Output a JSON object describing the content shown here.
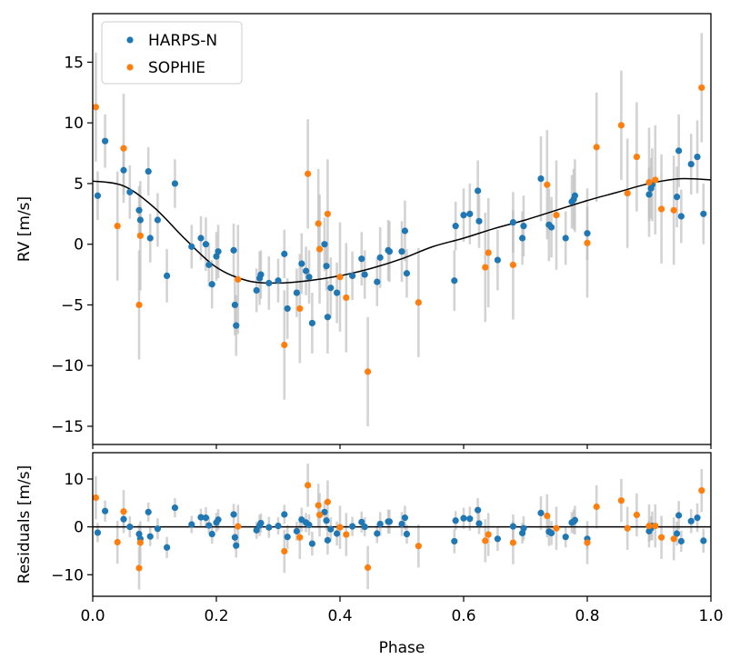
{
  "chart_data": [
    {
      "type": "scatter",
      "panel": "top",
      "xlabel": "",
      "ylabel": "RV [m/s]",
      "xlim": [
        0,
        1
      ],
      "ylim": [
        -16.5,
        19
      ],
      "yticks": [
        15,
        10,
        5,
        0,
        -5,
        -10,
        -15
      ],
      "ytick_labels": [
        "15",
        "10",
        "5",
        "0",
        "−5",
        "−10",
        "−15"
      ],
      "grid": false,
      "legend": {
        "placement": "top-left",
        "entries": [
          "HARPS-N",
          "SOPHIE"
        ]
      },
      "colors": {
        "HARPS-N": "#1f77b4",
        "SOPHIE": "#ff7f0e",
        "errorbar": "#bbbbbb",
        "model": "#000000"
      },
      "model": {
        "x": [
          0,
          0.05,
          0.1,
          0.15,
          0.2,
          0.25,
          0.3,
          0.35,
          0.4,
          0.45,
          0.5,
          0.55,
          0.6,
          0.65,
          0.7,
          0.75,
          0.8,
          0.85,
          0.9,
          0.95,
          1.0
        ],
        "y": [
          5.2,
          4.8,
          3.0,
          0.4,
          -1.9,
          -3.0,
          -3.2,
          -3.0,
          -2.6,
          -2.0,
          -1.2,
          -0.2,
          0.5,
          1.3,
          2.0,
          2.8,
          3.6,
          4.3,
          5.0,
          5.4,
          5.3
        ]
      },
      "series": [
        {
          "name": "HARPS-N",
          "x": [
            0.008,
            0.02,
            0.05,
            0.06,
            0.075,
            0.077,
            0.09,
            0.093,
            0.105,
            0.12,
            0.133,
            0.16,
            0.175,
            0.183,
            0.188,
            0.193,
            0.2,
            0.203,
            0.228,
            0.23,
            0.232,
            0.265,
            0.27,
            0.272,
            0.285,
            0.3,
            0.31,
            0.315,
            0.33,
            0.338,
            0.345,
            0.35,
            0.355,
            0.375,
            0.378,
            0.38,
            0.385,
            0.395,
            0.42,
            0.435,
            0.44,
            0.46,
            0.465,
            0.478,
            0.48,
            0.5,
            0.505,
            0.508,
            0.585,
            0.587,
            0.6,
            0.61,
            0.623,
            0.625,
            0.655,
            0.68,
            0.695,
            0.697,
            0.725,
            0.738,
            0.742,
            0.765,
            0.775,
            0.778,
            0.78,
            0.8,
            0.9,
            0.903,
            0.905,
            0.945,
            0.948,
            0.952,
            0.968,
            0.978,
            0.988
          ],
          "y": [
            4.0,
            8.5,
            6.1,
            4.3,
            2.8,
            2.0,
            6.0,
            0.5,
            2.0,
            -2.6,
            5.0,
            -0.2,
            0.5,
            0.0,
            -1.7,
            -3.3,
            -1.0,
            -0.6,
            -0.5,
            -5.0,
            -6.7,
            -3.8,
            -2.8,
            -2.5,
            -3.2,
            -3.0,
            -0.8,
            -5.3,
            -4.0,
            -1.6,
            -2.2,
            -2.7,
            -6.5,
            0.0,
            -1.8,
            -6.0,
            -3.6,
            -4.0,
            -2.6,
            -1.2,
            -2.5,
            -3.1,
            -1.1,
            -0.5,
            -0.6,
            -0.6,
            1.1,
            -2.4,
            -3.0,
            1.5,
            2.4,
            2.5,
            4.4,
            1.9,
            -1.3,
            1.8,
            0.5,
            1.5,
            5.4,
            1.6,
            1.4,
            0.5,
            3.5,
            3.7,
            4.0,
            0.9,
            4.1,
            4.6,
            4.9,
            3.9,
            7.7,
            2.3,
            6.6,
            7.2,
            2.5
          ],
          "errors": [
            2.0,
            2.2,
            2.0,
            2.2,
            2.0,
            1.2,
            2.0,
            2.0,
            2.2,
            2.2,
            2.0,
            1.8,
            1.8,
            2.2,
            1.8,
            2.0,
            2.0,
            2.2,
            2.2,
            2.5,
            2.5,
            1.8,
            2.2,
            2.0,
            2.2,
            1.8,
            2.0,
            2.5,
            2.0,
            2.5,
            2.0,
            2.2,
            2.5,
            2.2,
            2.0,
            3.0,
            2.5,
            2.5,
            2.0,
            2.2,
            2.0,
            2.0,
            2.5,
            2.5,
            2.5,
            2.5,
            2.5,
            2.0,
            2.5,
            2.0,
            2.2,
            2.5,
            2.5,
            2.2,
            2.5,
            2.5,
            2.2,
            2.5,
            3.5,
            3.0,
            2.5,
            2.2,
            2.2,
            2.5,
            3.0,
            2.2,
            2.2,
            2.5,
            3.0,
            2.5,
            3.0,
            2.2,
            2.5,
            3.0,
            2.5
          ]
        },
        {
          "name": "SOPHIE",
          "x": [
            0.005,
            0.04,
            0.05,
            0.075,
            0.077,
            0.235,
            0.31,
            0.335,
            0.348,
            0.365,
            0.367,
            0.38,
            0.4,
            0.41,
            0.445,
            0.527,
            0.635,
            0.64,
            0.68,
            0.735,
            0.75,
            0.8,
            0.815,
            0.855,
            0.865,
            0.88,
            0.9,
            0.91,
            0.92,
            0.94,
            0.985
          ],
          "y": [
            11.3,
            1.5,
            7.9,
            -5.0,
            0.7,
            -2.9,
            -8.3,
            -5.3,
            5.8,
            1.7,
            -0.4,
            2.5,
            -2.7,
            -4.4,
            -10.5,
            -4.8,
            -1.9,
            -0.7,
            -1.7,
            4.9,
            2.4,
            0.1,
            8.0,
            9.8,
            4.2,
            7.2,
            5.1,
            5.3,
            2.9,
            2.8,
            12.9
          ]
        }
      ]
    },
    {
      "type": "scatter",
      "panel": "bottom",
      "xlabel": "Phase",
      "ylabel": "Residuals [m/s]",
      "xlim": [
        0,
        1
      ],
      "ylim": [
        -14.5,
        15.5
      ],
      "xticks": [
        0.0,
        0.2,
        0.4,
        0.6,
        0.8,
        1.0
      ],
      "xtick_labels": [
        "0.0",
        "0.2",
        "0.4",
        "0.6",
        "0.8",
        "1.0"
      ],
      "yticks": [
        10,
        0,
        -10
      ],
      "ytick_labels": [
        "10",
        "0",
        "−10"
      ],
      "zero_line": 0,
      "series": [
        {
          "name": "HARPS-N",
          "x": [
            0.008,
            0.02,
            0.05,
            0.06,
            0.075,
            0.077,
            0.09,
            0.093,
            0.105,
            0.12,
            0.133,
            0.16,
            0.175,
            0.183,
            0.188,
            0.193,
            0.2,
            0.203,
            0.228,
            0.23,
            0.232,
            0.265,
            0.27,
            0.272,
            0.285,
            0.3,
            0.31,
            0.315,
            0.33,
            0.338,
            0.345,
            0.35,
            0.355,
            0.375,
            0.378,
            0.38,
            0.385,
            0.395,
            0.42,
            0.435,
            0.44,
            0.46,
            0.465,
            0.478,
            0.48,
            0.5,
            0.505,
            0.508,
            0.585,
            0.587,
            0.6,
            0.61,
            0.623,
            0.625,
            0.655,
            0.68,
            0.695,
            0.697,
            0.725,
            0.738,
            0.742,
            0.765,
            0.775,
            0.778,
            0.78,
            0.8,
            0.9,
            0.903,
            0.905,
            0.945,
            0.948,
            0.952,
            0.968,
            0.978,
            0.988
          ],
          "y": [
            -1.2,
            3.3,
            1.6,
            0.0,
            -1.5,
            -2.5,
            3.1,
            -2.0,
            -0.4,
            -4.3,
            4.0,
            0.5,
            2.0,
            1.9,
            0.3,
            -1.5,
            0.9,
            1.5,
            2.6,
            -2.2,
            -3.9,
            -0.7,
            0.3,
            0.8,
            -0.1,
            0.2,
            2.6,
            -2.1,
            -0.9,
            1.5,
            0.9,
            0.4,
            -3.5,
            3.1,
            1.3,
            -2.8,
            -0.5,
            -1.4,
            0.1,
            1.0,
            0.0,
            -1.4,
            0.6,
            1.1,
            1.1,
            0.6,
            1.9,
            -1.5,
            -3.0,
            1.3,
            1.8,
            1.7,
            3.5,
            0.7,
            -2.5,
            0.1,
            -1.3,
            -0.3,
            2.9,
            -1.0,
            -1.3,
            -2.1,
            0.9,
            1.1,
            1.4,
            -2.5,
            -0.9,
            -0.3,
            0.2,
            -1.4,
            2.4,
            -3.0,
            1.2,
            1.9,
            -2.9
          ],
          "errors": [
            2.0,
            2.2,
            2.0,
            2.2,
            2.0,
            1.2,
            2.0,
            2.0,
            2.2,
            2.2,
            2.0,
            1.8,
            1.8,
            2.2,
            1.8,
            2.0,
            2.0,
            2.2,
            2.2,
            2.5,
            2.5,
            1.8,
            2.2,
            2.0,
            2.2,
            1.8,
            2.0,
            2.5,
            2.0,
            2.5,
            2.0,
            2.2,
            2.5,
            2.2,
            2.0,
            3.0,
            2.5,
            2.5,
            2.0,
            2.2,
            2.0,
            2.0,
            2.5,
            2.5,
            2.5,
            2.5,
            2.5,
            2.0,
            2.5,
            2.0,
            2.2,
            2.5,
            2.5,
            2.2,
            2.5,
            2.5,
            2.2,
            2.5,
            3.5,
            3.0,
            2.5,
            2.2,
            2.2,
            2.5,
            3.0,
            2.2,
            2.2,
            2.5,
            3.0,
            2.5,
            3.0,
            2.2,
            2.5,
            3.0,
            2.5
          ]
        },
        {
          "name": "SOPHIE",
          "x": [
            0.005,
            0.04,
            0.05,
            0.075,
            0.077,
            0.235,
            0.31,
            0.335,
            0.348,
            0.365,
            0.367,
            0.38,
            0.4,
            0.41,
            0.445,
            0.527,
            0.635,
            0.64,
            0.68,
            0.735,
            0.75,
            0.8,
            0.815,
            0.855,
            0.865,
            0.88,
            0.9,
            0.91,
            0.92,
            0.94,
            0.985
          ],
          "y": [
            6.1,
            -3.2,
            3.2,
            -8.6,
            -3.3,
            0.1,
            -5.1,
            -2.2,
            8.7,
            4.5,
            2.5,
            5.2,
            -0.1,
            -1.6,
            -8.5,
            -4.0,
            -2.9,
            -1.6,
            -3.3,
            2.3,
            -0.3,
            -3.3,
            4.2,
            5.5,
            -0.3,
            2.5,
            0.2,
            0.2,
            -2.2,
            -2.5,
            7.6
          ]
        }
      ]
    }
  ]
}
